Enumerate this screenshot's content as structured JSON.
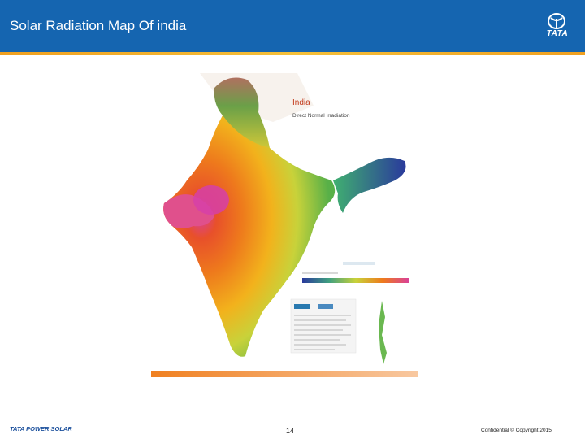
{
  "header": {
    "title": "Solar Radiation Map Of india",
    "logo_text": "TATA"
  },
  "map": {
    "title": "India",
    "subtitle": "Direct Normal Irradiation"
  },
  "footer": {
    "brand": "TATA POWER SOLAR",
    "page_number": "14",
    "copyright": "Confidential © Copyright 2015"
  },
  "colors": {
    "header_blue": "#1565b0",
    "accent_orange": "#f0a020",
    "brand_blue": "#1a4f9c"
  }
}
